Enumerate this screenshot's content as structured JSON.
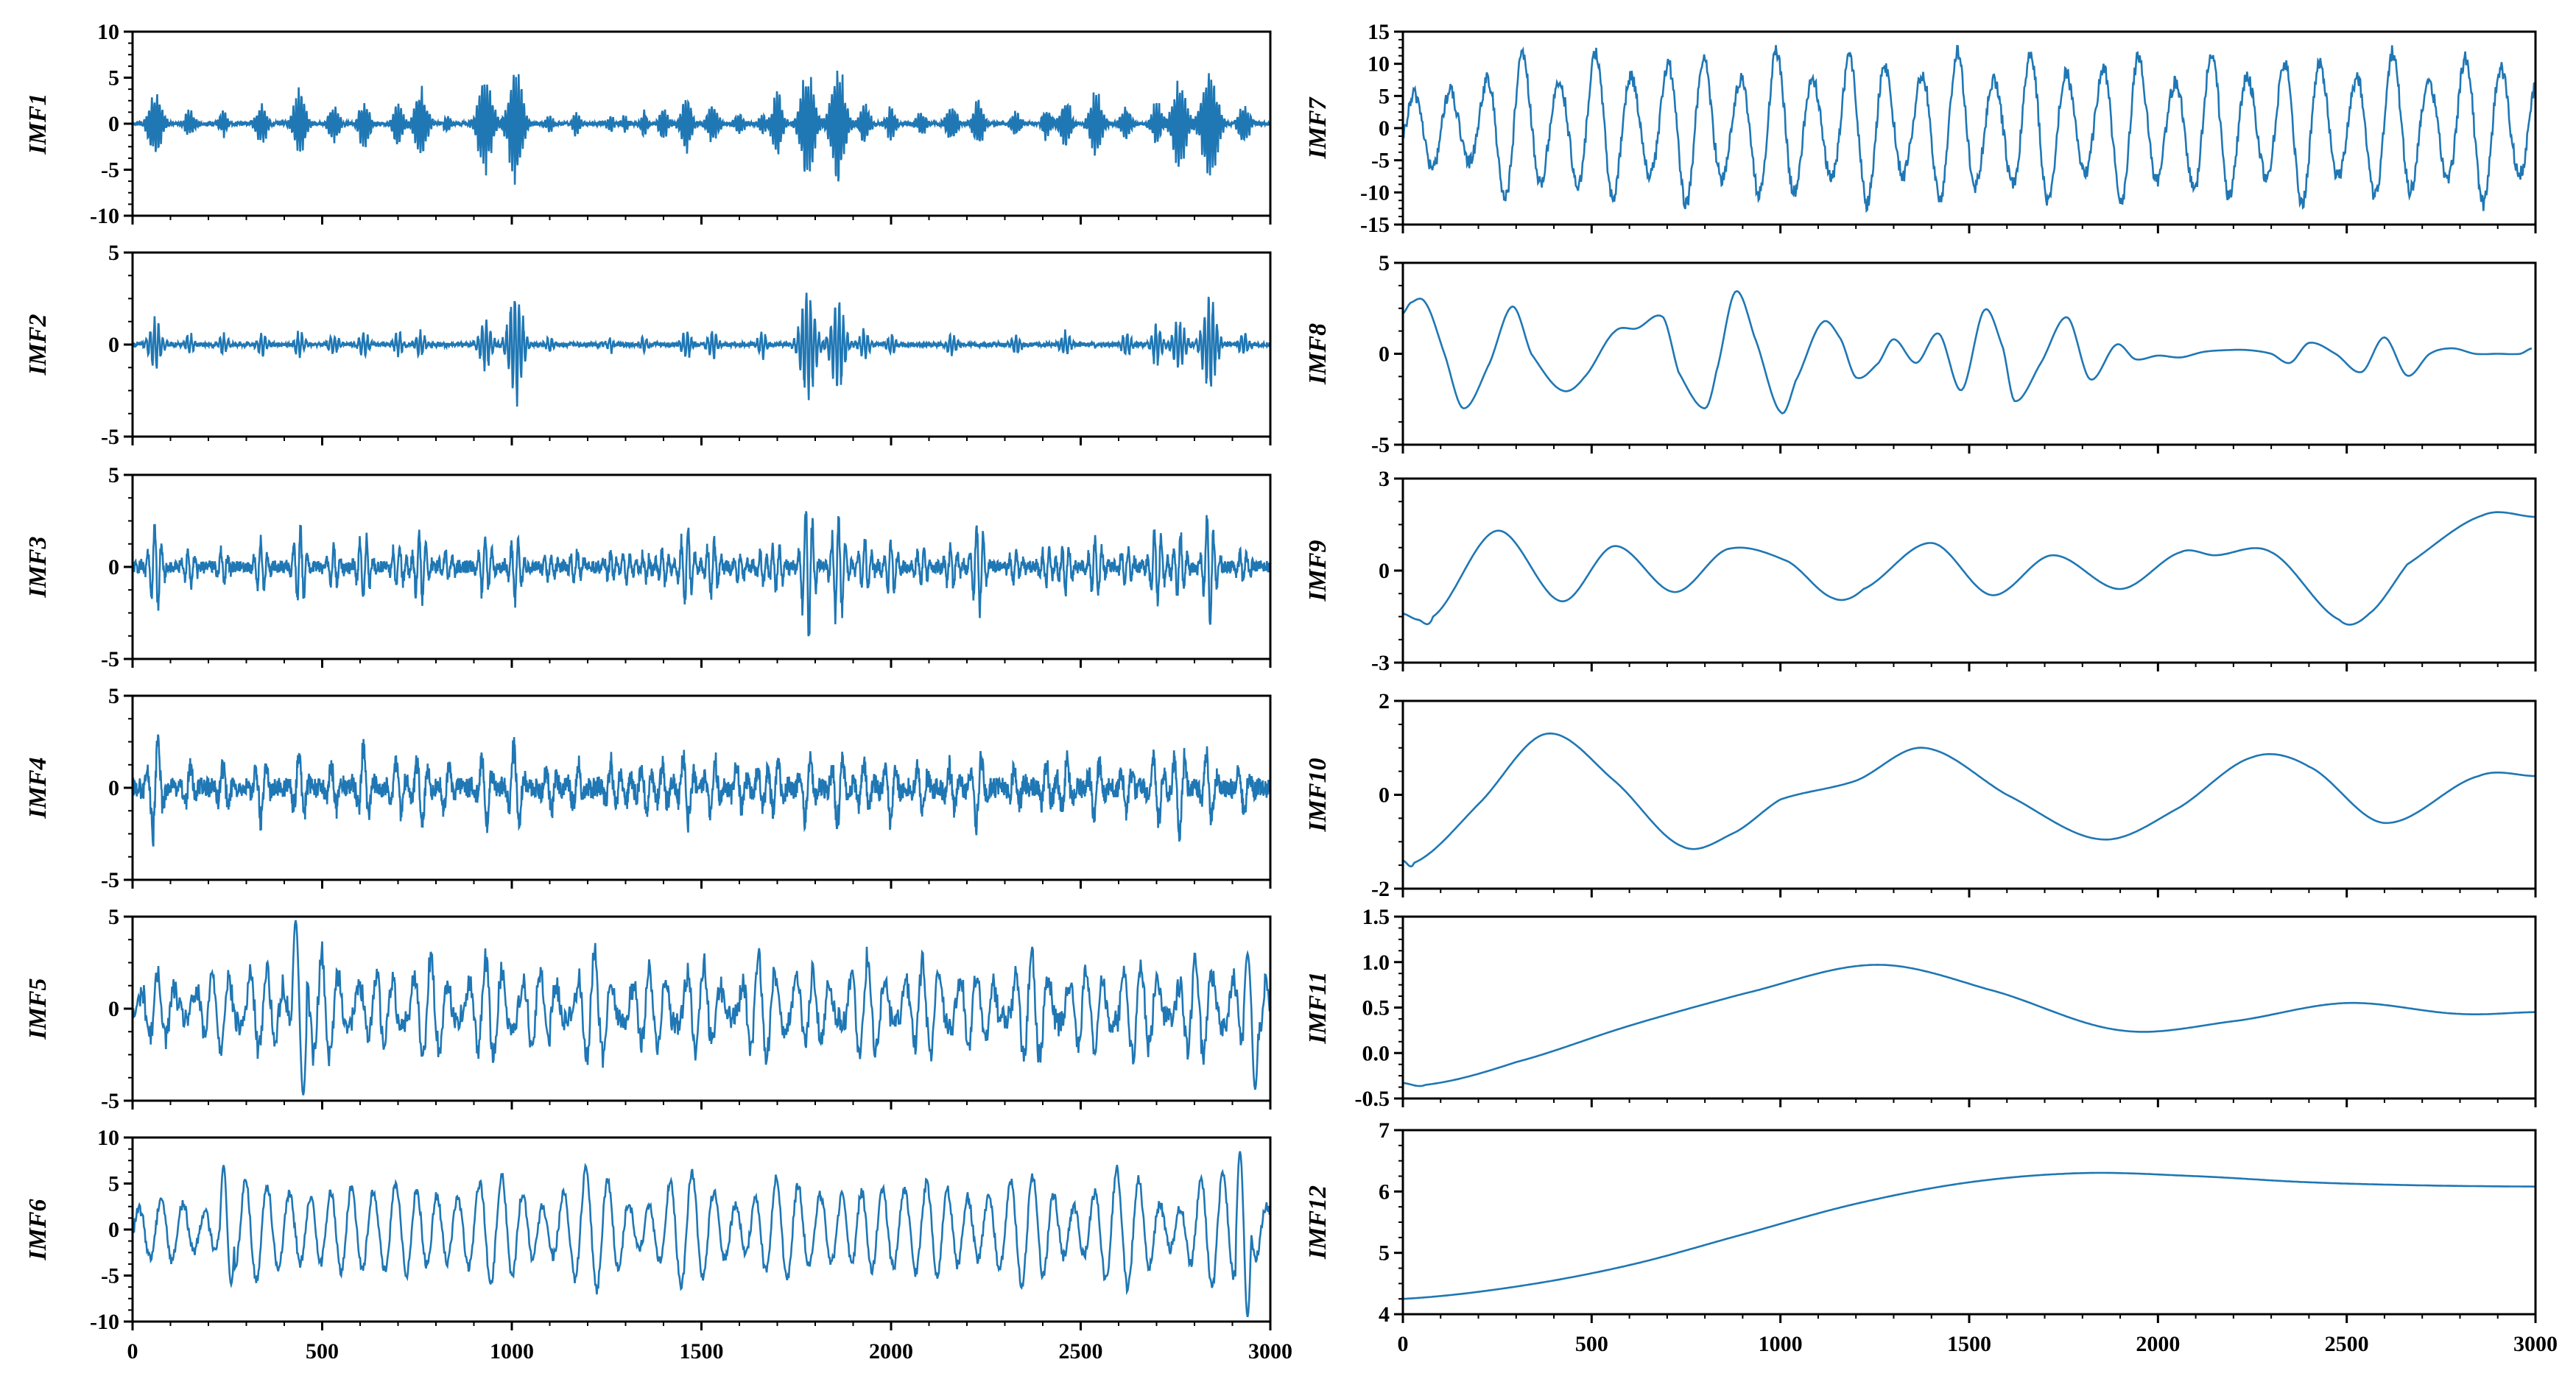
{
  "chart_data": [
    {
      "type": "line",
      "id": "imf1",
      "ylabel": "IMF1",
      "ylim": [
        -10,
        10
      ],
      "yticks": [
        -10,
        -5,
        0,
        5,
        10
      ],
      "xlim": [
        0,
        3000
      ],
      "xticks": [],
      "line_color": "#1f77b4",
      "signal": {
        "kind": "bursts",
        "carrier_period": 7,
        "noise": 0.22,
        "centers": [
          60,
          150,
          240,
          340,
          440,
          530,
          610,
          700,
          760,
          830,
          930,
          1010,
          1100,
          1170,
          1260,
          1300,
          1350,
          1400,
          1460,
          1530,
          1600,
          1660,
          1700,
          1780,
          1860,
          1930,
          2000,
          2080,
          2160,
          2230,
          2330,
          2410,
          2460,
          2540,
          2620,
          2700,
          2760,
          2840,
          2930
        ],
        "amps": [
          4,
          2,
          1.5,
          2.5,
          4,
          2.5,
          3,
          2.5,
          4.5,
          1,
          6,
          7,
          1,
          1.5,
          1,
          1,
          1.5,
          2,
          3.5,
          2.5,
          1.5,
          1.2,
          4,
          6.5,
          7,
          2.5,
          2,
          1.5,
          2.5,
          3,
          1.5,
          2,
          3,
          4,
          2,
          2.5,
          5.5,
          7,
          2.5
        ],
        "widths": [
          15,
          10,
          10,
          12,
          14,
          12,
          12,
          12,
          14,
          8,
          16,
          16,
          8,
          8,
          8,
          8,
          8,
          10,
          12,
          12,
          10,
          8,
          12,
          16,
          16,
          12,
          10,
          10,
          12,
          12,
          10,
          10,
          12,
          14,
          12,
          12,
          16,
          18,
          12
        ]
      }
    },
    {
      "type": "line",
      "id": "imf2",
      "ylabel": "IMF2",
      "ylim": [
        -5,
        5
      ],
      "yticks": [
        -5,
        0,
        5
      ],
      "xlim": [
        0,
        3000
      ],
      "xticks": [],
      "line_color": "#1f77b4",
      "signal": {
        "kind": "bursts",
        "carrier_period": 11,
        "noise": 0.12,
        "centers": [
          60,
          150,
          240,
          340,
          440,
          530,
          610,
          700,
          760,
          930,
          1010,
          1100,
          1260,
          1350,
          1460,
          1530,
          1660,
          1780,
          1860,
          1930,
          2000,
          2160,
          2330,
          2460,
          2620,
          2700,
          2760,
          2840,
          2930
        ],
        "amps": [
          1.5,
          0.6,
          0.6,
          0.7,
          0.8,
          0.7,
          0.8,
          0.7,
          0.8,
          1.5,
          3.6,
          0.5,
          0.5,
          0.5,
          1,
          1,
          0.8,
          3.7,
          2.8,
          1,
          0.7,
          0.7,
          0.6,
          0.8,
          0.8,
          1.2,
          1.5,
          2.8,
          0.7
        ],
        "widths": [
          14,
          10,
          10,
          10,
          10,
          10,
          10,
          10,
          10,
          14,
          16,
          8,
          8,
          8,
          10,
          10,
          10,
          16,
          16,
          10,
          10,
          10,
          10,
          10,
          10,
          12,
          14,
          16,
          10
        ]
      }
    },
    {
      "type": "line",
      "id": "imf3",
      "ylabel": "IMF3",
      "ylim": [
        -5,
        5
      ],
      "yticks": [
        -5,
        0,
        5
      ],
      "xlim": [
        0,
        3000
      ],
      "xticks": [],
      "line_color": "#1f77b4",
      "signal": {
        "kind": "bursts",
        "carrier_period": 18,
        "noise": 0.35,
        "centers": [
          60,
          150,
          240,
          340,
          440,
          530,
          610,
          700,
          760,
          830,
          930,
          1010,
          1100,
          1170,
          1260,
          1300,
          1350,
          1400,
          1460,
          1530,
          1600,
          1660,
          1700,
          1780,
          1860,
          1930,
          2000,
          2080,
          2160,
          2230,
          2330,
          2410,
          2460,
          2540,
          2620,
          2700,
          2760,
          2840,
          2930
        ],
        "amps": [
          3,
          1.2,
          1,
          1.5,
          2.5,
          1.2,
          2,
          1.5,
          2.5,
          1,
          2,
          2,
          0.8,
          1,
          0.8,
          0.8,
          0.8,
          1,
          2.5,
          2,
          1,
          1,
          1.5,
          4.2,
          3.5,
          1.8,
          2,
          1.2,
          1.5,
          3,
          1,
          1.2,
          1.5,
          2,
          1.2,
          2.5,
          2,
          3.2,
          1
        ]
      }
    },
    {
      "type": "line",
      "id": "imf4",
      "ylabel": "IMF4",
      "ylim": [
        -5,
        5
      ],
      "yticks": [
        -5,
        0,
        5
      ],
      "xlim": [
        0,
        3000
      ],
      "xticks": [],
      "line_color": "#1f77b4",
      "signal": {
        "kind": "bursts",
        "carrier_period": 30,
        "noise": 0.55,
        "centers": [
          60,
          150,
          240,
          340,
          440,
          530,
          610,
          700,
          760,
          830,
          930,
          1010,
          1100,
          1170,
          1260,
          1300,
          1350,
          1400,
          1460,
          1530,
          1600,
          1660,
          1700,
          1780,
          1860,
          1930,
          2000,
          2080,
          2160,
          2230,
          2330,
          2410,
          2460,
          2540,
          2620,
          2700,
          2760,
          2840,
          2930
        ],
        "amps": [
          3.5,
          1.5,
          1.5,
          2,
          2.5,
          1.5,
          2.5,
          2,
          2.5,
          1.5,
          2.5,
          3,
          1.5,
          1.5,
          1.5,
          1.2,
          1.5,
          1.5,
          2.5,
          2,
          1.5,
          1.5,
          2,
          2.5,
          2.5,
          2,
          2,
          1.5,
          1.5,
          2.5,
          1.5,
          1.5,
          2,
          2,
          1.5,
          2.5,
          3,
          2.5,
          1.5
        ]
      }
    },
    {
      "type": "line",
      "id": "imf5",
      "ylabel": "IMF5",
      "ylim": [
        -5,
        5
      ],
      "yticks": [
        -5,
        0,
        5
      ],
      "xlim": [
        0,
        3000
      ],
      "xticks": [],
      "line_color": "#1f77b4",
      "signal": {
        "kind": "oscillation",
        "periods": [
          48,
          36
        ],
        "amps": [
          1.6,
          0.9
        ],
        "noise": 0.7,
        "early_damp": 0.45,
        "spikes": [
          [
            440,
            4.8,
            -4.7
          ],
          [
            2950,
            3,
            -4.4
          ]
        ]
      }
    },
    {
      "type": "line",
      "id": "imf6",
      "ylabel": "IMF6",
      "ylim": [
        -10,
        10
      ],
      "yticks": [
        -10,
        -5,
        0,
        5,
        10
      ],
      "xlim": [
        0,
        3000
      ],
      "xticks": [
        0,
        500,
        1000,
        1500,
        2000,
        2500,
        3000
      ],
      "line_color": "#1f77b4",
      "signal": {
        "kind": "oscillation",
        "periods": [
          56,
          70
        ],
        "amps": [
          4.2,
          1.2
        ],
        "noise": 0.6,
        "early_damp": 0.4,
        "spikes": [
          [
            250,
            7,
            -6
          ],
          [
            2930,
            8.5,
            -9.5
          ]
        ]
      }
    },
    {
      "type": "line",
      "id": "imf7",
      "ylabel": "IMF7",
      "ylim": [
        -15,
        15
      ],
      "yticks": [
        -15,
        -10,
        -5,
        0,
        5,
        10,
        15
      ],
      "xlim": [
        0,
        3000
      ],
      "xticks": [],
      "line_color": "#1f77b4",
      "signal": {
        "kind": "oscillation",
        "periods": [
          96
        ],
        "amps": [
          9.5
        ],
        "noise": 1.2,
        "early_damp": 0.4,
        "spikes": []
      }
    },
    {
      "type": "line",
      "id": "imf8",
      "ylabel": "IMF8",
      "ylim": [
        -5,
        5
      ],
      "yticks": [
        -5,
        0,
        5
      ],
      "xlim": [
        0,
        3000
      ],
      "xticks": [],
      "line_color": "#1f77b4",
      "signal": {
        "kind": "knots",
        "x": [
          0,
          20,
          60,
          110,
          160,
          230,
          290,
          340,
          420,
          480,
          560,
          620,
          690,
          730,
          800,
          830,
          880,
          930,
          1000,
          1040,
          1110,
          1160,
          1200,
          1260,
          1300,
          1360,
          1420,
          1480,
          1540,
          1590,
          1620,
          1690,
          1760,
          1820,
          1890,
          1940,
          2000,
          2060,
          2120,
          2180,
          2240,
          2300,
          2350,
          2400,
          2470,
          2540,
          2600,
          2660,
          2720,
          2780,
          2840,
          2900,
          2960,
          2990
        ],
        "y": [
          2.2,
          2.8,
          2.8,
          0,
          -3,
          -0.5,
          2.6,
          0,
          -2,
          -1.3,
          1.2,
          1.4,
          2,
          -1,
          -3,
          -1,
          3.4,
          1,
          -3.2,
          -1.5,
          1.7,
          0.8,
          -1.3,
          -0.5,
          0.8,
          -0.5,
          1.1,
          -2,
          2.4,
          0.3,
          -2.6,
          -0.5,
          2,
          -1.4,
          0.5,
          -0.3,
          -0.1,
          -0.2,
          0.1,
          0.2,
          0.2,
          0,
          -0.5,
          0.6,
          0,
          -1,
          0.9,
          -1.2,
          0,
          0.3,
          0,
          0,
          0,
          0.3
        ]
      }
    },
    {
      "type": "line",
      "id": "imf9",
      "ylabel": "IMF9",
      "ylim": [
        -3,
        3
      ],
      "yticks": [
        -3,
        0,
        3
      ],
      "xlim": [
        0,
        3000
      ],
      "xticks": [],
      "line_color": "#1f77b4",
      "signal": {
        "kind": "knots",
        "x": [
          0,
          40,
          80,
          250,
          420,
          560,
          720,
          860,
          1020,
          1140,
          1220,
          1400,
          1560,
          1720,
          1900,
          2060,
          2150,
          2300,
          2480,
          2560,
          2660,
          2860,
          3000
        ],
        "y": [
          -1.4,
          -1.6,
          -1.5,
          1.3,
          -1,
          0.8,
          -0.7,
          0.7,
          0.3,
          -0.9,
          -0.6,
          0.9,
          -0.8,
          0.5,
          -0.6,
          0.6,
          0.5,
          0.6,
          -1.6,
          -1.4,
          0.2,
          1.8,
          1.75
        ]
      }
    },
    {
      "type": "line",
      "id": "imf10",
      "ylabel": "IMF10",
      "ylim": [
        -2,
        2
      ],
      "yticks": [
        -2,
        0,
        2
      ],
      "xlim": [
        0,
        3000
      ],
      "xticks": [],
      "line_color": "#1f77b4",
      "signal": {
        "kind": "knots",
        "x": [
          0,
          30,
          200,
          380,
          560,
          740,
          880,
          1000,
          1200,
          1380,
          1600,
          1850,
          2050,
          2250,
          2400,
          2600,
          2850,
          3000
        ],
        "y": [
          -1.4,
          -1.45,
          -0.2,
          1.3,
          0.3,
          -1.1,
          -0.8,
          -0.1,
          0.3,
          1,
          0,
          -0.95,
          -0.3,
          0.8,
          0.6,
          -0.6,
          0.4,
          0.4
        ]
      }
    },
    {
      "type": "line",
      "id": "imf11",
      "ylabel": "IMF11",
      "ylim": [
        -0.5,
        1.5
      ],
      "yticks": [
        -0.5,
        0.0,
        0.5,
        1.0,
        1.5
      ],
      "xlim": [
        0,
        3000
      ],
      "xticks": [],
      "line_color": "#1f77b4",
      "signal": {
        "kind": "knots",
        "x": [
          0,
          60,
          300,
          600,
          900,
          1250,
          1550,
          1900,
          2200,
          2500,
          2800,
          3000
        ],
        "y": [
          -0.33,
          -0.35,
          -0.1,
          0.3,
          0.65,
          0.97,
          0.7,
          0.25,
          0.35,
          0.55,
          0.43,
          0.45
        ]
      }
    },
    {
      "type": "line",
      "id": "imf12",
      "ylabel": "IMF12",
      "ylim": [
        4,
        7
      ],
      "yticks": [
        4,
        5,
        6,
        7
      ],
      "xlim": [
        0,
        3000
      ],
      "xticks": [
        0,
        500,
        1000,
        1500,
        2000,
        2500,
        3000
      ],
      "line_color": "#1f77b4",
      "signal": {
        "kind": "knots",
        "x": [
          0,
          300,
          600,
          900,
          1200,
          1500,
          1800,
          2100,
          2400,
          2700,
          3000
        ],
        "y": [
          4.25,
          4.45,
          4.8,
          5.3,
          5.8,
          6.15,
          6.3,
          6.25,
          6.15,
          6.1,
          6.08
        ]
      }
    }
  ]
}
